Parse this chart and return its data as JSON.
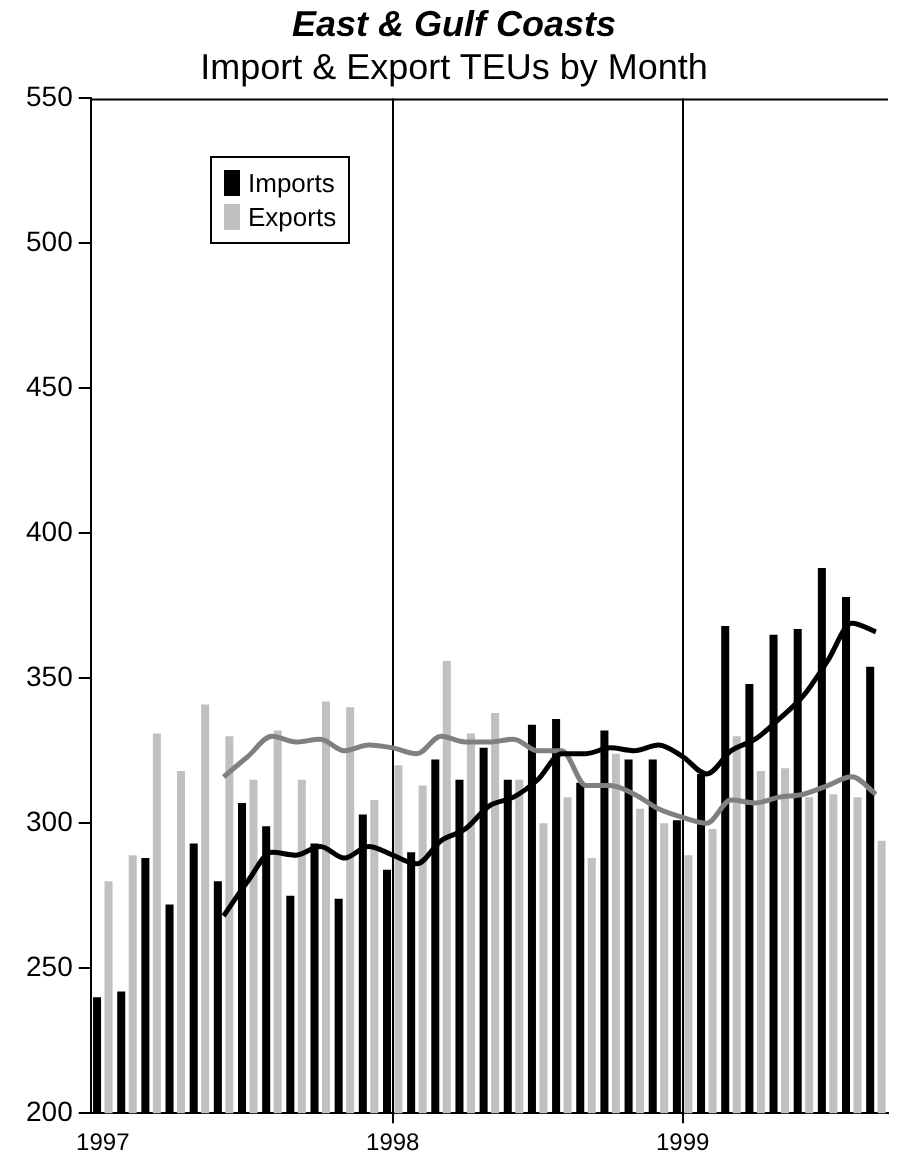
{
  "chart_data": {
    "type": "bar",
    "title": "East & Gulf Coasts",
    "subtitle": "Import & Export TEUs by Month",
    "categories": [
      "1997",
      null,
      null,
      null,
      null,
      null,
      null,
      null,
      null,
      null,
      null,
      null,
      "1998",
      null,
      null,
      null,
      null,
      null,
      null,
      null,
      null,
      null,
      null,
      null,
      "1999",
      null,
      null,
      null,
      null,
      null,
      null,
      null,
      null
    ],
    "series": [
      {
        "name": "Imports",
        "color": "#000000",
        "values": [
          240,
          242,
          288,
          272,
          293,
          280,
          307,
          299,
          275,
          293,
          274,
          303,
          284,
          290,
          322,
          315,
          326,
          315,
          334,
          336,
          314,
          332,
          322,
          322,
          301,
          317,
          368,
          348,
          365,
          367,
          388,
          378,
          354
        ]
      },
      {
        "name": "Exports",
        "color": "#c0c0c0",
        "values": [
          280,
          289,
          331,
          318,
          341,
          330,
          315,
          332,
          315,
          342,
          340,
          308,
          320,
          313,
          356,
          331,
          338,
          315,
          300,
          309,
          288,
          324,
          305,
          300,
          289,
          298,
          330,
          318,
          319,
          309,
          310,
          309,
          294
        ]
      },
      {
        "type": "line",
        "color": "#000000",
        "values": [
          null,
          null,
          null,
          null,
          null,
          268,
          280,
          290,
          289,
          292,
          288,
          292,
          289,
          286,
          294,
          298,
          306,
          309,
          315,
          324,
          324,
          326,
          325,
          327,
          323,
          317,
          325,
          329,
          336,
          344,
          356,
          369,
          366
        ]
      },
      {
        "type": "line",
        "color": "#808080",
        "values": [
          null,
          null,
          null,
          null,
          null,
          316,
          323,
          330,
          328,
          329,
          325,
          327,
          326,
          324,
          330,
          328,
          328,
          329,
          325,
          325,
          313,
          313,
          310,
          305,
          302,
          300,
          308,
          307,
          309,
          310,
          313,
          316,
          310
        ]
      }
    ],
    "ylim": [
      200,
      550
    ],
    "yticks": [
      200,
      250,
      300,
      350,
      400,
      450,
      500,
      550
    ],
    "grid": "x",
    "legend": "top left",
    "marker": "none",
    "line_style": "solid"
  }
}
